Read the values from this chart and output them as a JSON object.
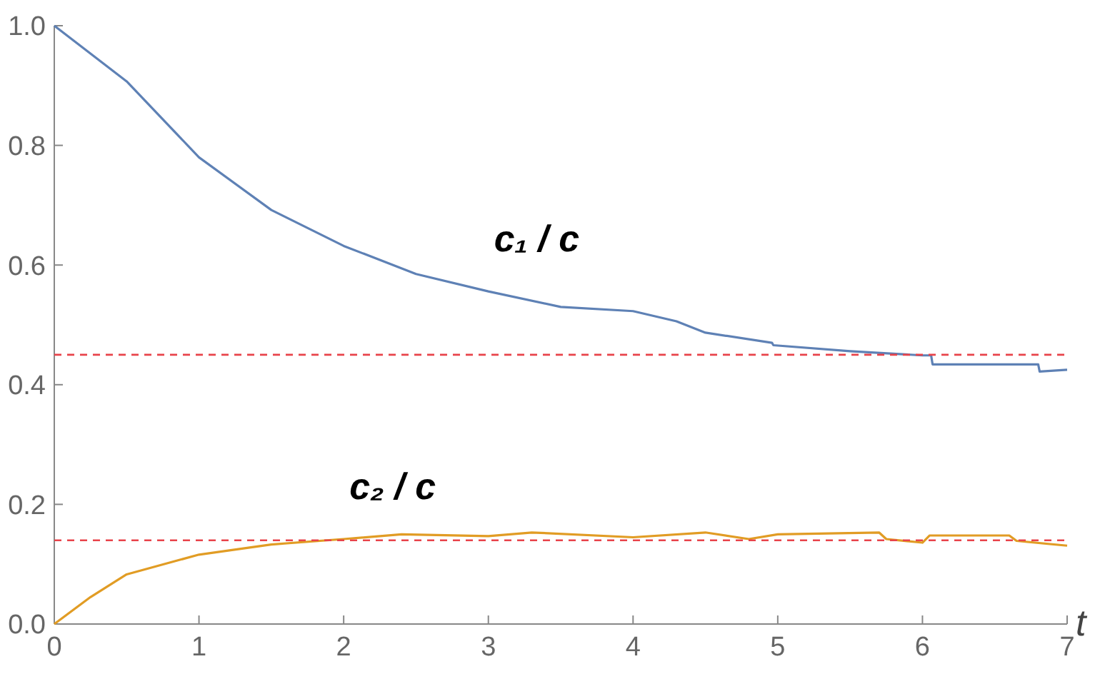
{
  "chart_data": {
    "type": "line",
    "xlabel": "t",
    "xlim": [
      0,
      7
    ],
    "ylim": [
      0,
      1
    ],
    "xticks": [
      0,
      1,
      2,
      3,
      4,
      5,
      6,
      7
    ],
    "yticks": [
      {
        "value": 0,
        "label": "0.0"
      },
      0.2,
      0.4,
      0.6,
      0.8,
      {
        "value": 1,
        "label": "1.0"
      }
    ],
    "grid": false,
    "line_style": "solid",
    "marker": "none",
    "series": [
      {
        "name": "c₁ / c",
        "color": "#5e81b5",
        "x": [
          0,
          0.5,
          1,
          1.5,
          2,
          2.5,
          3,
          3.5,
          4,
          4.3,
          4.5,
          4.96,
          4.97,
          5.5,
          6,
          6.06,
          6.07,
          6.8,
          6.81,
          7
        ],
        "values": [
          1.0,
          0.907,
          0.78,
          0.692,
          0.632,
          0.585,
          0.556,
          0.53,
          0.523,
          0.506,
          0.487,
          0.47,
          0.466,
          0.456,
          0.449,
          0.449,
          0.434,
          0.434,
          0.422,
          0.425
        ]
      },
      {
        "name": "c₂ / c",
        "color": "#e19c24",
        "x": [
          0,
          0.25,
          0.5,
          1,
          1.5,
          2,
          2.4,
          3,
          3.3,
          4,
          4.5,
          4.8,
          5,
          5.7,
          5.75,
          6,
          6.05,
          6.6,
          6.65,
          7
        ],
        "values": [
          0,
          0.045,
          0.083,
          0.116,
          0.133,
          0.142,
          0.15,
          0.147,
          0.153,
          0.145,
          0.153,
          0.142,
          0.15,
          0.153,
          0.142,
          0.136,
          0.148,
          0.148,
          0.139,
          0.131
        ]
      }
    ],
    "ref_lines": [
      {
        "axis": "y",
        "value": 0.45,
        "color": "#e8434a",
        "line_style": "dashed"
      },
      {
        "axis": "y",
        "value": 0.14,
        "color": "#e8434a",
        "line_style": "dashed"
      }
    ]
  }
}
